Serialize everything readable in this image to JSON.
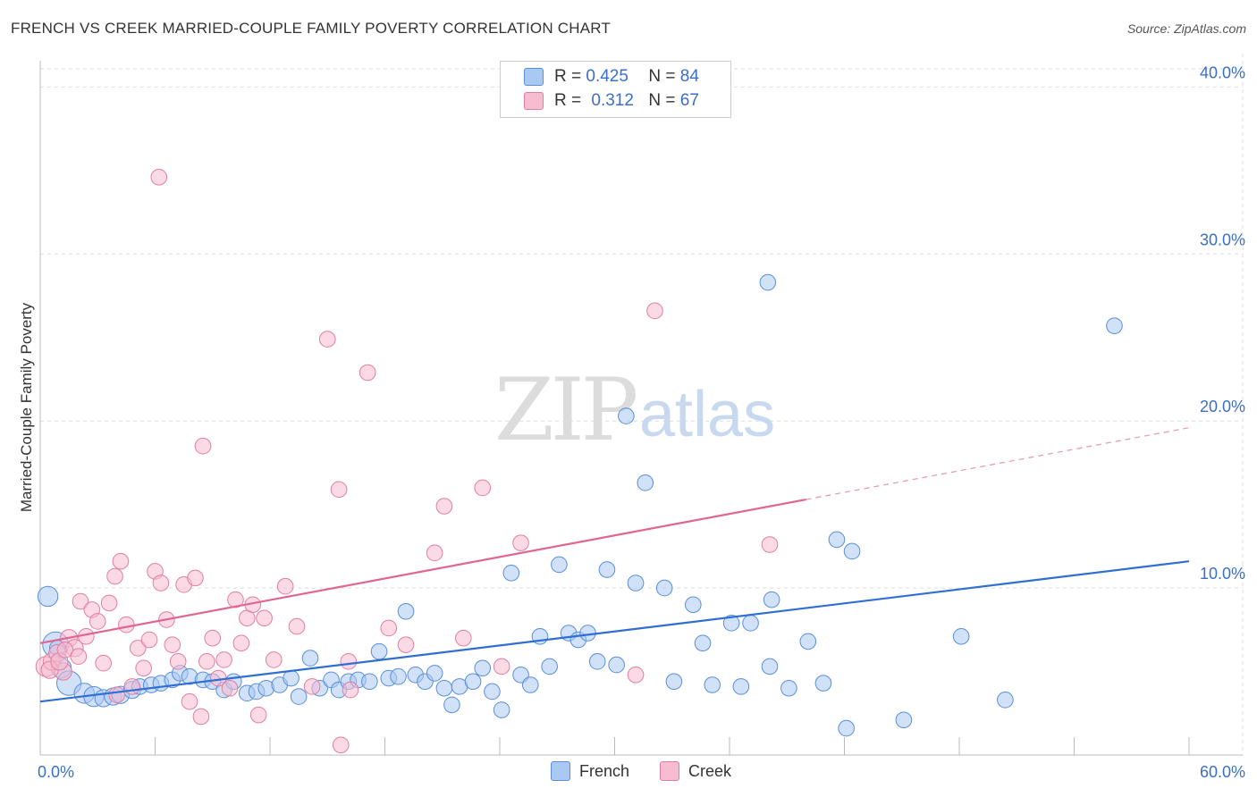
{
  "title": "FRENCH VS CREEK MARRIED-COUPLE FAMILY POVERTY CORRELATION CHART",
  "source": "Source: ZipAtlas.com",
  "watermark": {
    "zip": "ZIP",
    "atlas": "atlas"
  },
  "legend": {
    "french": {
      "r_label": "R =",
      "r_value": "0.425",
      "n_label": "N =",
      "n_value": "84"
    },
    "creek": {
      "r_label": "R =",
      "r_value": "0.312",
      "n_label": "N =",
      "n_value": "67"
    }
  },
  "bottom_legend": {
    "french": "French",
    "creek": "Creek"
  },
  "colors": {
    "french_fill": "#a9c8f2",
    "french_stroke": "#5b8fd9",
    "french_line": "#2f6fd1",
    "creek_fill": "#f7bcd0",
    "creek_stroke": "#e07fa1",
    "creek_line": "#e0668f",
    "tick_label": "#3b6fc7",
    "grid": "#dddddd"
  },
  "chart_data": {
    "type": "scatter",
    "title": "FRENCH VS CREEK MARRIED-COUPLE FAMILY POVERTY CORRELATION CHART",
    "xlabel": "",
    "ylabel": "Married-Couple Family Poverty",
    "xlim": [
      0,
      60
    ],
    "ylim": [
      0,
      42
    ],
    "x_tick_labels": [
      "0.0%",
      "60.0%"
    ],
    "y_ticks": [
      10,
      20,
      30,
      40
    ],
    "y_tick_labels": [
      "10.0%",
      "20.0%",
      "30.0%",
      "40.0%"
    ],
    "series": [
      {
        "name": "French",
        "R": 0.425,
        "N": 84,
        "trend": {
          "x": [
            0,
            60
          ],
          "y": [
            3.2,
            11.6
          ],
          "dashed_after": null
        },
        "points": [
          [
            0.4,
            9.5
          ],
          [
            0.8,
            6.6
          ],
          [
            1.1,
            5.2
          ],
          [
            1.5,
            4.3
          ],
          [
            2.3,
            3.7
          ],
          [
            2.8,
            3.5
          ],
          [
            3.3,
            3.4
          ],
          [
            3.8,
            3.5
          ],
          [
            4.2,
            3.6
          ],
          [
            4.8,
            3.9
          ],
          [
            5.2,
            4.1
          ],
          [
            5.8,
            4.2
          ],
          [
            6.3,
            4.3
          ],
          [
            6.9,
            4.5
          ],
          [
            7.3,
            4.9
          ],
          [
            7.8,
            4.7
          ],
          [
            8.5,
            4.5
          ],
          [
            9.0,
            4.4
          ],
          [
            9.6,
            3.9
          ],
          [
            10.1,
            4.4
          ],
          [
            10.8,
            3.7
          ],
          [
            11.3,
            3.8
          ],
          [
            11.8,
            4.0
          ],
          [
            12.5,
            4.2
          ],
          [
            13.1,
            4.6
          ],
          [
            13.5,
            3.5
          ],
          [
            14.1,
            5.8
          ],
          [
            14.6,
            4.0
          ],
          [
            15.2,
            4.5
          ],
          [
            15.6,
            3.9
          ],
          [
            16.1,
            4.4
          ],
          [
            16.6,
            4.5
          ],
          [
            17.2,
            4.4
          ],
          [
            17.7,
            6.2
          ],
          [
            18.2,
            4.6
          ],
          [
            18.7,
            4.7
          ],
          [
            19.1,
            8.6
          ],
          [
            19.6,
            4.8
          ],
          [
            20.1,
            4.4
          ],
          [
            20.6,
            4.9
          ],
          [
            21.1,
            4.0
          ],
          [
            21.5,
            3.0
          ],
          [
            21.9,
            4.1
          ],
          [
            22.6,
            4.4
          ],
          [
            23.1,
            5.2
          ],
          [
            23.6,
            3.8
          ],
          [
            24.1,
            2.7
          ],
          [
            24.6,
            10.9
          ],
          [
            25.1,
            4.8
          ],
          [
            25.6,
            4.2
          ],
          [
            26.1,
            7.1
          ],
          [
            26.6,
            5.3
          ],
          [
            27.1,
            11.4
          ],
          [
            27.6,
            7.3
          ],
          [
            28.1,
            6.9
          ],
          [
            28.6,
            7.3
          ],
          [
            29.1,
            5.6
          ],
          [
            29.6,
            11.1
          ],
          [
            30.1,
            5.4
          ],
          [
            30.6,
            20.3
          ],
          [
            31.1,
            10.3
          ],
          [
            31.6,
            16.3
          ],
          [
            32.6,
            10.0
          ],
          [
            33.1,
            4.4
          ],
          [
            34.1,
            9.0
          ],
          [
            34.6,
            6.7
          ],
          [
            35.1,
            4.2
          ],
          [
            36.1,
            7.9
          ],
          [
            36.6,
            4.1
          ],
          [
            37.1,
            7.9
          ],
          [
            38.1,
            5.3
          ],
          [
            38.2,
            9.3
          ],
          [
            38.0,
            28.3
          ],
          [
            39.1,
            4.0
          ],
          [
            40.1,
            6.8
          ],
          [
            40.9,
            4.3
          ],
          [
            41.6,
            12.9
          ],
          [
            42.1,
            1.6
          ],
          [
            42.4,
            12.2
          ],
          [
            45.1,
            2.1
          ],
          [
            48.1,
            7.1
          ],
          [
            50.4,
            3.3
          ],
          [
            56.1,
            25.7
          ],
          [
            0.9,
            6.4
          ]
        ],
        "sizes": [
          14,
          18,
          14,
          17,
          14,
          14,
          12,
          12,
          12,
          12,
          11,
          11,
          11,
          11,
          11,
          11,
          11,
          11,
          11,
          11,
          11,
          11,
          11,
          11,
          11,
          11,
          11,
          11,
          11,
          11,
          11,
          11,
          11,
          11,
          11,
          11,
          11,
          11,
          11,
          11,
          11,
          11,
          11,
          11,
          11,
          11,
          11,
          11,
          11,
          11,
          11,
          11,
          11,
          11,
          11,
          11,
          11,
          11,
          11,
          11,
          11,
          11,
          11,
          11,
          11,
          11,
          11,
          11,
          11,
          11,
          11,
          11,
          11,
          11,
          11,
          11,
          11,
          11,
          11,
          11,
          11,
          11,
          11,
          11
        ]
      },
      {
        "name": "Creek",
        "R": 0.312,
        "N": 67,
        "trend": {
          "x": [
            0,
            60
          ],
          "y": [
            6.7,
            19.6
          ],
          "solid_until_x": 40
        },
        "points": [
          [
            0.3,
            5.3
          ],
          [
            0.6,
            5.6
          ],
          [
            0.9,
            6.1
          ],
          [
            1.2,
            5.0
          ],
          [
            1.5,
            7.0
          ],
          [
            1.8,
            6.4
          ],
          [
            2.1,
            9.2
          ],
          [
            2.4,
            7.1
          ],
          [
            2.7,
            8.7
          ],
          [
            3.0,
            8.0
          ],
          [
            3.3,
            5.5
          ],
          [
            3.6,
            9.1
          ],
          [
            3.9,
            10.7
          ],
          [
            4.2,
            11.6
          ],
          [
            4.5,
            7.8
          ],
          [
            4.8,
            4.1
          ],
          [
            5.1,
            6.4
          ],
          [
            5.4,
            5.2
          ],
          [
            5.7,
            6.9
          ],
          [
            6.0,
            11.0
          ],
          [
            6.3,
            10.3
          ],
          [
            6.6,
            8.1
          ],
          [
            6.9,
            6.6
          ],
          [
            7.2,
            5.6
          ],
          [
            7.5,
            10.2
          ],
          [
            7.8,
            3.2
          ],
          [
            8.1,
            10.6
          ],
          [
            8.4,
            2.3
          ],
          [
            8.7,
            5.6
          ],
          [
            9.0,
            7.0
          ],
          [
            9.3,
            4.6
          ],
          [
            9.6,
            5.7
          ],
          [
            9.9,
            4.0
          ],
          [
            10.2,
            9.3
          ],
          [
            10.5,
            6.7
          ],
          [
            10.8,
            8.2
          ],
          [
            11.1,
            9.0
          ],
          [
            11.4,
            2.4
          ],
          [
            11.7,
            8.2
          ],
          [
            12.2,
            5.7
          ],
          [
            12.8,
            10.1
          ],
          [
            13.4,
            7.7
          ],
          [
            14.2,
            4.1
          ],
          [
            15.0,
            24.9
          ],
          [
            15.6,
            15.9
          ],
          [
            15.7,
            0.6
          ],
          [
            16.1,
            5.6
          ],
          [
            16.2,
            3.9
          ],
          [
            17.1,
            22.9
          ],
          [
            18.2,
            7.6
          ],
          [
            19.1,
            6.6
          ],
          [
            20.6,
            12.1
          ],
          [
            21.1,
            14.9
          ],
          [
            22.1,
            7.0
          ],
          [
            23.1,
            16.0
          ],
          [
            24.1,
            5.3
          ],
          [
            25.1,
            12.7
          ],
          [
            6.2,
            34.6
          ],
          [
            8.5,
            18.5
          ],
          [
            31.1,
            4.8
          ],
          [
            32.1,
            26.6
          ],
          [
            38.1,
            12.6
          ],
          [
            0.5,
            5.1
          ],
          [
            1.0,
            5.6
          ],
          [
            1.3,
            6.3
          ],
          [
            2.0,
            5.9
          ],
          [
            4.0,
            3.6
          ]
        ],
        "sizes": [
          14,
          12,
          12,
          12,
          12,
          12,
          11,
          11,
          11,
          11,
          11,
          11,
          11,
          11,
          11,
          11,
          11,
          11,
          11,
          11,
          11,
          11,
          11,
          11,
          11,
          11,
          11,
          11,
          11,
          11,
          11,
          11,
          11,
          11,
          11,
          11,
          11,
          11,
          11,
          11,
          11,
          11,
          11,
          11,
          11,
          11,
          11,
          11,
          11,
          11,
          11,
          11,
          11,
          11,
          11,
          11,
          11,
          11,
          11,
          11,
          11,
          11,
          12,
          12,
          11,
          11,
          11
        ]
      }
    ]
  }
}
